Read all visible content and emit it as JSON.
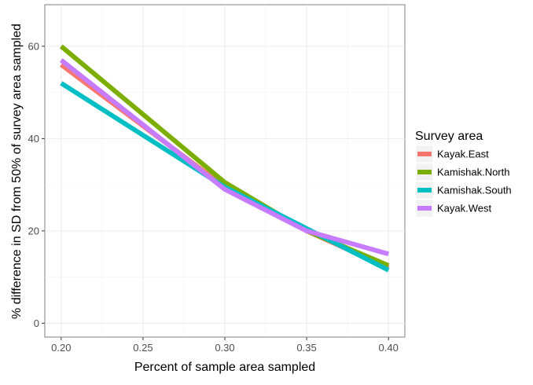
{
  "chart_data": {
    "type": "line",
    "xlabel": "Percent of sample area sampled",
    "ylabel": "% difference in SD from 50% of survey area sampled",
    "x": [
      0.2,
      0.3,
      0.35,
      0.4
    ],
    "xlim": [
      0.19,
      0.41
    ],
    "ylim": [
      -3,
      69
    ],
    "x_ticks": [
      "0.20",
      "0.25",
      "0.30",
      "0.35",
      "0.40"
    ],
    "x_tick_values": [
      0.2,
      0.25,
      0.3,
      0.35,
      0.4
    ],
    "y_ticks": [
      "0",
      "20",
      "40",
      "60"
    ],
    "y_tick_values": [
      0,
      20,
      40,
      60
    ],
    "grid": true,
    "legend_title": "Survey area",
    "legend_position": "right",
    "series": [
      {
        "name": "Kayak.East",
        "color": "#F8766D",
        "values": [
          56.0,
          29.5,
          20.0,
          12.0
        ]
      },
      {
        "name": "Kamishak.North",
        "color": "#7CAE00",
        "values": [
          60.0,
          30.5,
          20.0,
          12.5
        ]
      },
      {
        "name": "Kamishak.South",
        "color": "#00BFC4",
        "values": [
          52.0,
          29.5,
          20.5,
          11.5
        ]
      },
      {
        "name": "Kayak.West",
        "color": "#C77CFF",
        "values": [
          57.0,
          29.0,
          20.0,
          15.0
        ]
      }
    ]
  }
}
